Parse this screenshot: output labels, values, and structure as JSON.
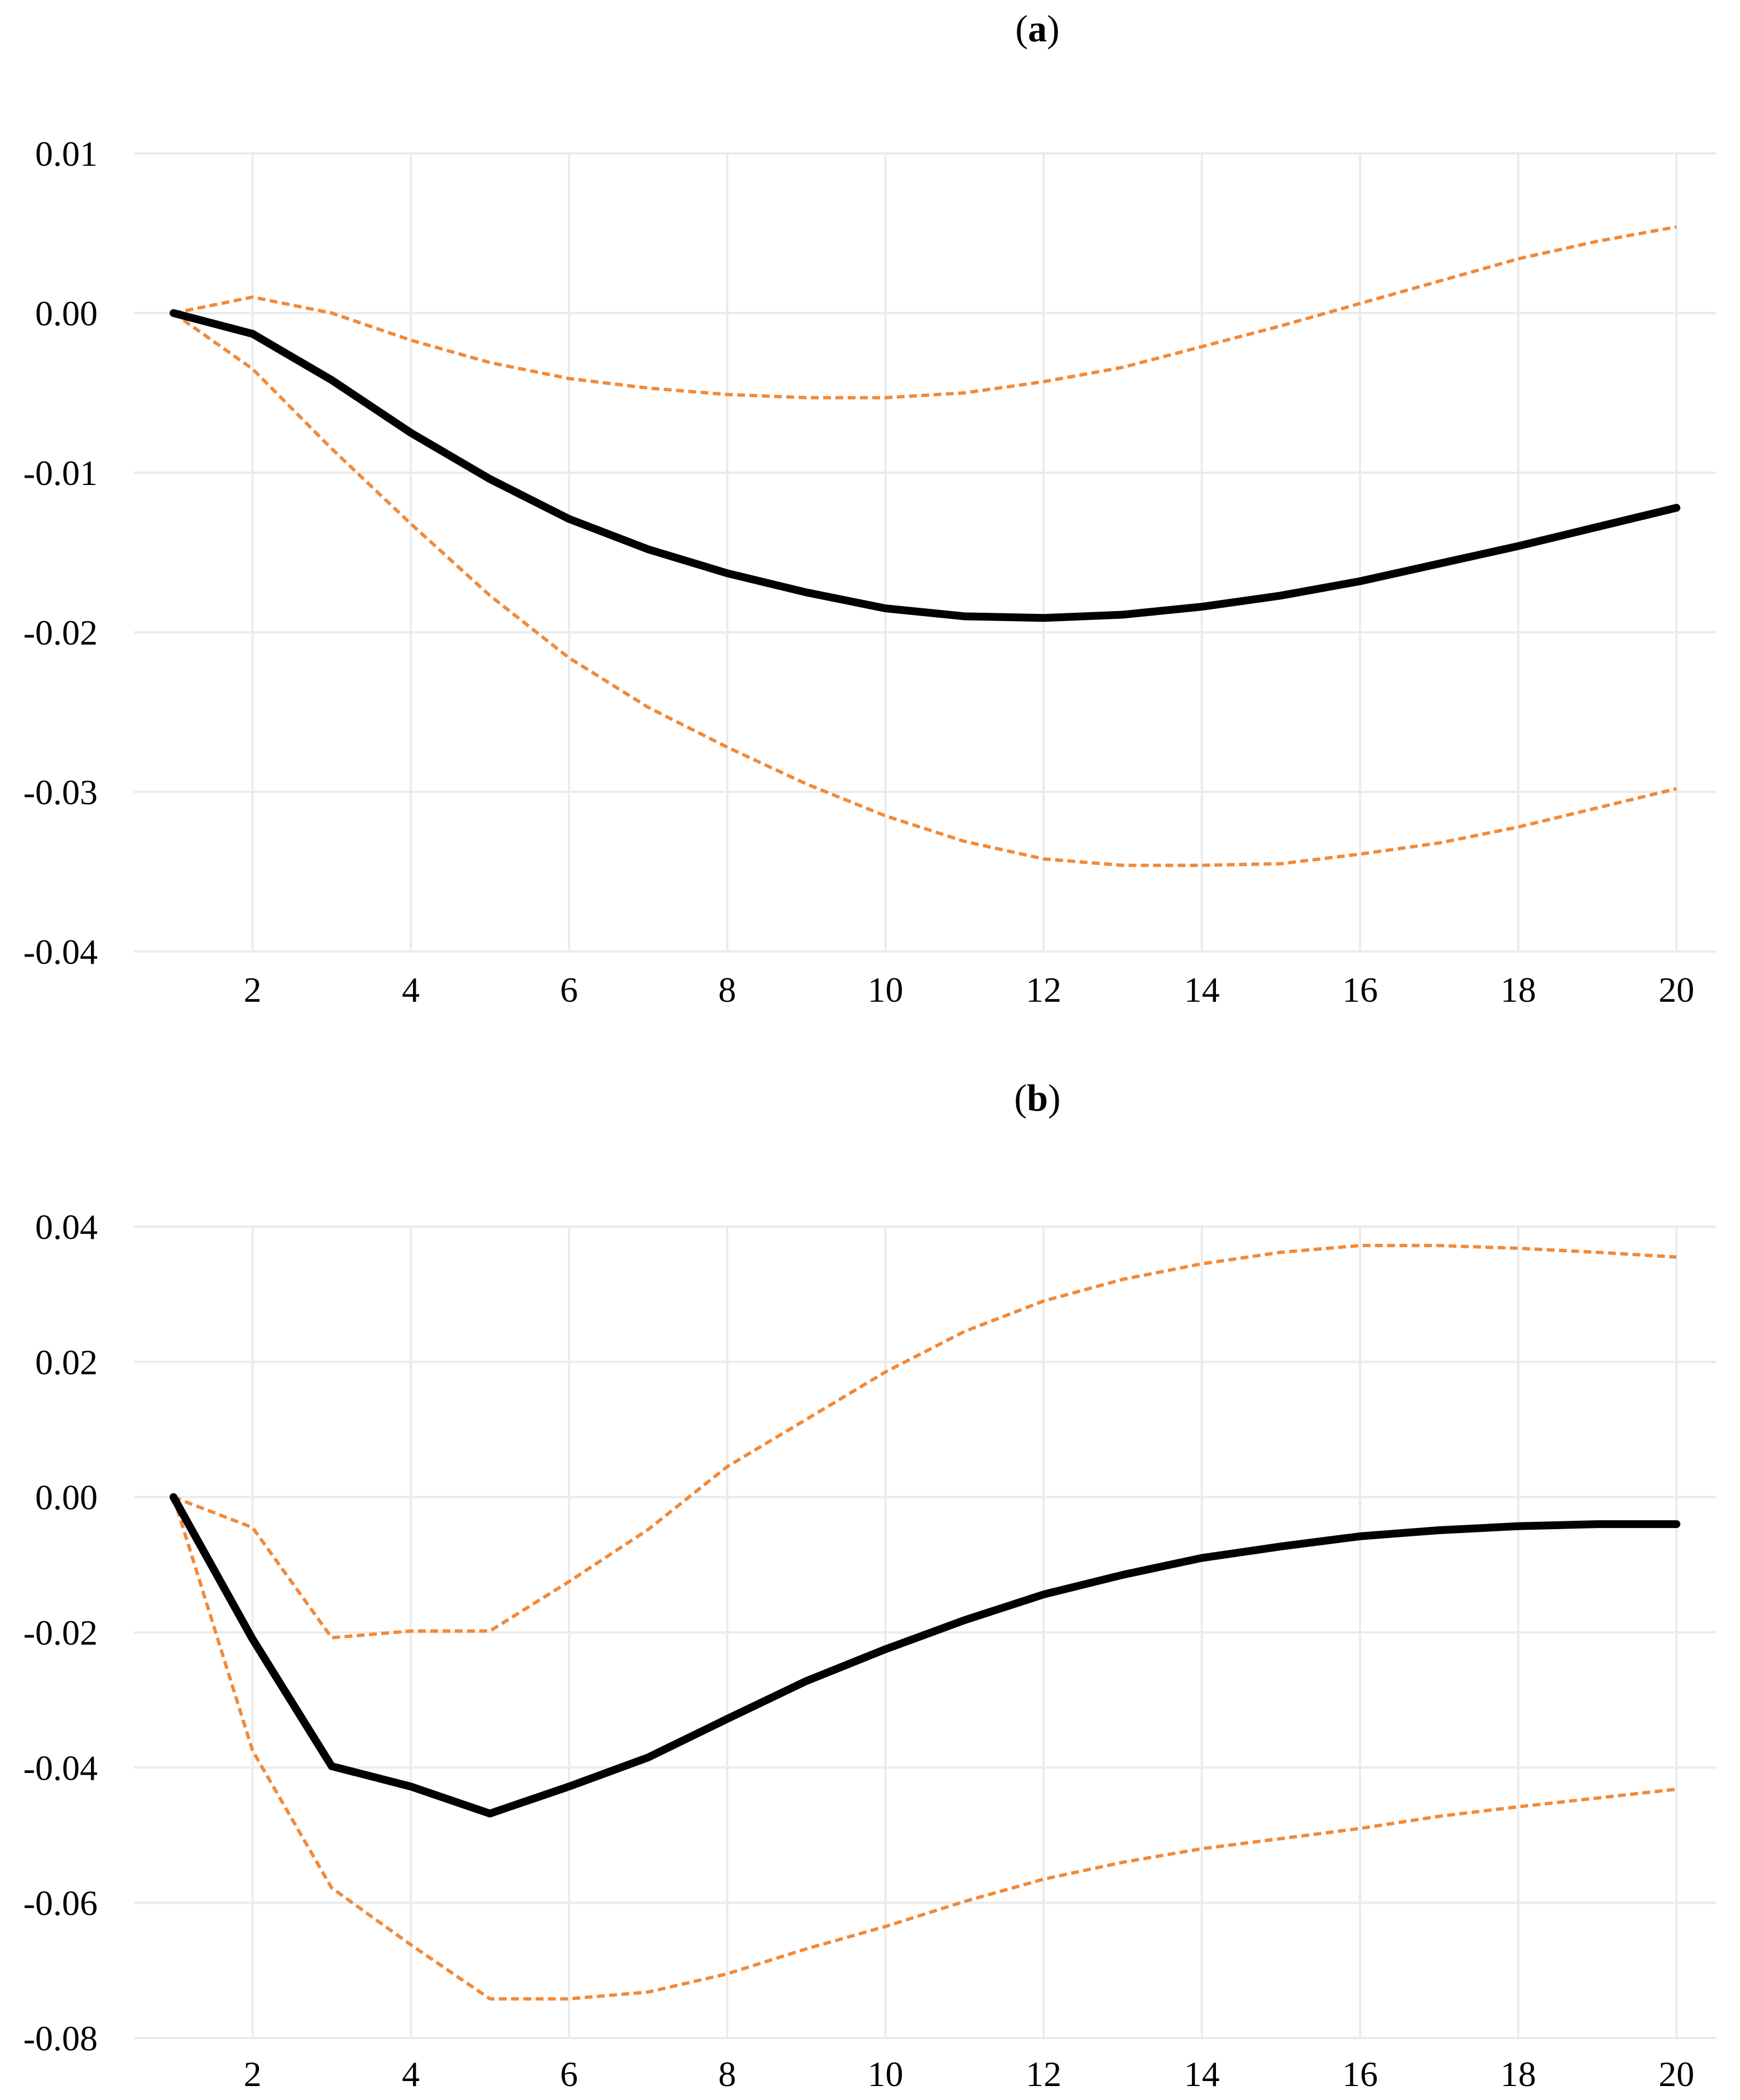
{
  "colors": {
    "main": "#000000",
    "band": "#f08a3a",
    "grid": "#ebebeb"
  },
  "chart_data": [
    {
      "type": "line",
      "panel_label": "a",
      "title": "",
      "xlabel": "",
      "ylabel": "",
      "x": [
        1,
        2,
        3,
        4,
        5,
        6,
        7,
        8,
        9,
        10,
        11,
        12,
        13,
        14,
        15,
        16,
        17,
        18,
        19,
        20
      ],
      "xlim": [
        0.5,
        20.5
      ],
      "ylim": [
        -0.04,
        0.01
      ],
      "x_ticks": [
        2,
        4,
        6,
        8,
        10,
        12,
        14,
        16,
        18,
        20
      ],
      "x_tick_labels": [
        "2",
        "4",
        "6",
        "8",
        "10",
        "12",
        "14",
        "16",
        "18",
        "20"
      ],
      "y_ticks": [
        0.01,
        0.0,
        -0.01,
        -0.02,
        -0.03,
        -0.04
      ],
      "y_tick_labels": [
        "0.01",
        "0.00",
        "-0.01",
        "-0.02",
        "-0.03",
        "-0.04"
      ],
      "series": [
        {
          "name": "response",
          "style": "solid",
          "values": [
            0.0,
            -0.0013,
            -0.0042,
            -0.0075,
            -0.0104,
            -0.0129,
            -0.0148,
            -0.0163,
            -0.0175,
            -0.0185,
            -0.019,
            -0.0191,
            -0.0189,
            -0.0184,
            -0.0177,
            -0.0168,
            -0.0157,
            -0.0146,
            -0.0134,
            -0.0122
          ]
        },
        {
          "name": "upper bound",
          "style": "dashed",
          "values": [
            0.0,
            0.001,
            0.0,
            -0.0017,
            -0.0031,
            -0.0041,
            -0.0047,
            -0.0051,
            -0.0053,
            -0.0053,
            -0.005,
            -0.0043,
            -0.0034,
            -0.0021,
            -0.0008,
            0.0006,
            0.002,
            0.0034,
            0.0045,
            0.0054
          ]
        },
        {
          "name": "lower bound",
          "style": "dashed",
          "values": [
            0.0,
            -0.0035,
            -0.0085,
            -0.0132,
            -0.0177,
            -0.0216,
            -0.0247,
            -0.0272,
            -0.0295,
            -0.0315,
            -0.0331,
            -0.0342,
            -0.0346,
            -0.0346,
            -0.0345,
            -0.0339,
            -0.0332,
            -0.0322,
            -0.031,
            -0.0298
          ]
        }
      ]
    },
    {
      "type": "line",
      "panel_label": "b",
      "title": "",
      "xlabel": "",
      "ylabel": "",
      "x": [
        1,
        2,
        3,
        4,
        5,
        6,
        7,
        8,
        9,
        10,
        11,
        12,
        13,
        14,
        15,
        16,
        17,
        18,
        19,
        20
      ],
      "xlim": [
        0.5,
        20.5
      ],
      "ylim": [
        -0.08,
        0.04
      ],
      "x_ticks": [
        2,
        4,
        6,
        8,
        10,
        12,
        14,
        16,
        18,
        20
      ],
      "x_tick_labels": [
        "2",
        "4",
        "6",
        "8",
        "10",
        "12",
        "14",
        "16",
        "18",
        "20"
      ],
      "y_ticks": [
        0.04,
        0.02,
        0.0,
        -0.02,
        -0.04,
        -0.06,
        -0.08
      ],
      "y_tick_labels": [
        "0.04",
        "0.02",
        "0.00",
        "-0.02",
        "-0.04",
        "-0.06",
        "-0.08"
      ],
      "series": [
        {
          "name": "response",
          "style": "solid",
          "values": [
            0.0,
            -0.021,
            -0.0398,
            -0.0428,
            -0.0468,
            -0.0428,
            -0.0385,
            -0.0328,
            -0.0272,
            -0.0225,
            -0.0182,
            -0.0144,
            -0.0115,
            -0.009,
            -0.0073,
            -0.0058,
            -0.0049,
            -0.0043,
            -0.004,
            -0.004
          ]
        },
        {
          "name": "upper bound",
          "style": "dashed",
          "values": [
            0.0,
            -0.0045,
            -0.0208,
            -0.0198,
            -0.0198,
            -0.0125,
            -0.0048,
            0.0045,
            0.0115,
            0.0185,
            0.0245,
            0.029,
            0.0322,
            0.0345,
            0.0362,
            0.0372,
            0.0372,
            0.0368,
            0.0362,
            0.0355
          ]
        },
        {
          "name": "lower bound",
          "style": "dashed",
          "values": [
            0.0,
            -0.0375,
            -0.0578,
            -0.0662,
            -0.0742,
            -0.0742,
            -0.0732,
            -0.0705,
            -0.0668,
            -0.0635,
            -0.0598,
            -0.0565,
            -0.054,
            -0.052,
            -0.0505,
            -0.049,
            -0.0472,
            -0.0458,
            -0.0445,
            -0.0432
          ]
        }
      ]
    }
  ]
}
